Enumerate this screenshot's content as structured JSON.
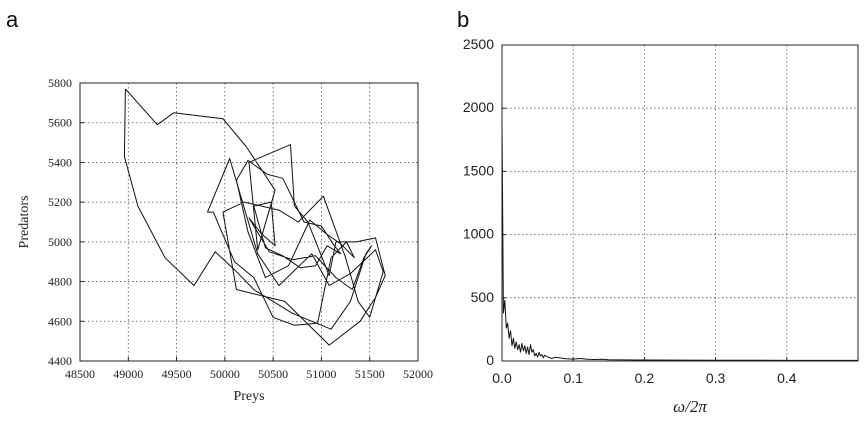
{
  "chart_data": [
    {
      "panel": "a",
      "type": "line",
      "xlabel": "Preys",
      "ylabel": "Predators",
      "xlim": [
        48500,
        52000
      ],
      "ylim": [
        4400,
        5800
      ],
      "xticks": [
        48500,
        49000,
        49500,
        50000,
        50500,
        51000,
        51500,
        52000
      ],
      "yticks": [
        4400,
        4600,
        4800,
        5000,
        5200,
        5400,
        5600,
        5800
      ],
      "grid": true,
      "series": [
        {
          "x": [
            48970,
            49300,
            49470,
            49980,
            50220,
            50520,
            50340,
            50250,
            50680,
            50720,
            50860,
            51080,
            51150,
            51360,
            51560,
            51660,
            51560,
            51400,
            51080,
            50620,
            50120,
            49980,
            50200,
            50560,
            50760,
            51020,
            51250,
            51380,
            51500,
            51640,
            51560,
            51300,
            51080,
            50900,
            50560,
            50340,
            50050,
            49820,
            49880,
            50100,
            50300,
            50500,
            50720,
            50960,
            51100,
            51260,
            51340,
            51200,
            51050,
            50880,
            50660,
            50420,
            50240,
            50120,
            50240,
            50440,
            50600,
            50820,
            51000,
            51120,
            51200,
            51060,
            50940,
            50780,
            50600,
            50420,
            50300,
            50480,
            50520,
            50380,
            50250,
            50460,
            50700,
            50940,
            51150,
            51320,
            51440,
            51520,
            51460,
            51300,
            51100,
            50900,
            50700,
            50500,
            50300,
            50100,
            49900,
            49680,
            49380,
            49100,
            48960,
            48970
          ],
          "y": [
            5770,
            5590,
            5650,
            5620,
            5480,
            5260,
            4960,
            5400,
            5490,
            5180,
            5100,
            4830,
            5000,
            5000,
            5020,
            4830,
            4720,
            4600,
            4480,
            4700,
            4760,
            5150,
            5200,
            5160,
            5100,
            5230,
            4920,
            4700,
            4620,
            4850,
            4960,
            4840,
            4780,
            4940,
            4780,
            4940,
            5420,
            5150,
            5150,
            4900,
            4820,
            4620,
            4580,
            4590,
            4920,
            5000,
            4920,
            4990,
            5040,
            5110,
            4880,
            4820,
            5050,
            5310,
            5410,
            5340,
            5320,
            5100,
            5080,
            4990,
            4940,
            4980,
            4880,
            4870,
            4930,
            4970,
            5180,
            5200,
            4980,
            5040,
            5120,
            4950,
            4910,
            4930,
            4820,
            4760,
            4920,
            4980,
            4940,
            4700,
            4560,
            4600,
            4640,
            4700,
            4760,
            4860,
            4950,
            4780,
            4920,
            5180,
            5430,
            5770
          ]
        }
      ]
    },
    {
      "panel": "b",
      "type": "line",
      "xlabel": "ω/2π",
      "ylabel": "",
      "xlim": [
        0,
        0.5
      ],
      "ylim": [
        0,
        2500
      ],
      "xticks": [
        0.0,
        0.1,
        0.2,
        0.3,
        0.4
      ],
      "yticks": [
        0,
        500,
        1000,
        1500,
        2000,
        2500
      ],
      "grid": true,
      "series": [
        {
          "x": [
            0.0,
            0.002,
            0.004,
            0.006,
            0.008,
            0.01,
            0.012,
            0.014,
            0.016,
            0.018,
            0.02,
            0.022,
            0.024,
            0.026,
            0.028,
            0.03,
            0.032,
            0.034,
            0.036,
            0.038,
            0.04,
            0.042,
            0.044,
            0.046,
            0.048,
            0.05,
            0.052,
            0.054,
            0.056,
            0.058,
            0.06,
            0.065,
            0.07,
            0.075,
            0.08,
            0.09,
            0.1,
            0.11,
            0.12,
            0.13,
            0.14,
            0.15,
            0.17,
            0.2,
            0.25,
            0.3,
            0.35,
            0.4,
            0.45,
            0.5
          ],
          "y": [
            1900,
            380,
            480,
            260,
            300,
            180,
            240,
            120,
            180,
            100,
            150,
            90,
            130,
            70,
            140,
            80,
            120,
            60,
            110,
            50,
            130,
            70,
            90,
            40,
            60,
            30,
            70,
            40,
            50,
            25,
            45,
            30,
            20,
            30,
            25,
            18,
            15,
            20,
            14,
            12,
            14,
            10,
            9,
            8,
            7,
            6,
            6,
            5,
            5,
            5
          ]
        }
      ]
    }
  ],
  "labels": {
    "panel_a": "a",
    "panel_b": "b"
  }
}
